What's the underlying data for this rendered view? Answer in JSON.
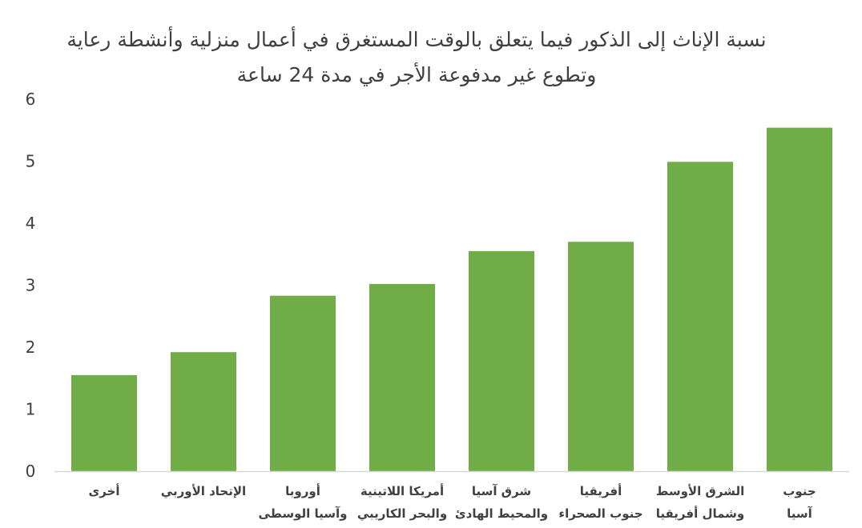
{
  "chart_data": {
    "type": "bar",
    "title_lines": [
      "نسبة الإناث إلى الذكور فيما يتعلق بالوقت المستغرق في أعمال منزلية وأنشطة رعاية",
      "وتطوع غير مدفوعة الأجر في مدة 24 ساعة"
    ],
    "categories": [
      [
        "أخرى"
      ],
      [
        "الإتحاد الأوربي"
      ],
      [
        "أوروبا",
        "وآسيا الوسطى"
      ],
      [
        "أمريكا اللاتينية",
        "والبحر الكاريبي"
      ],
      [
        "شرق آسيا",
        "والمحيط الهادئ"
      ],
      [
        "أفريقيا",
        "جنوب الصحراء"
      ],
      [
        "الشرق الأوسط",
        "وشمال أفريقيا"
      ],
      [
        "جنوب",
        "آسيا"
      ]
    ],
    "values": [
      1.55,
      1.92,
      2.83,
      3.02,
      3.55,
      3.7,
      4.99,
      5.54
    ],
    "ylim": [
      0,
      6
    ],
    "yticks": [
      "0",
      "1",
      "2",
      "3",
      "4",
      "5",
      "6"
    ],
    "xlabel": "",
    "ylabel": "",
    "grid": false,
    "bar_color": "#70AD47"
  }
}
